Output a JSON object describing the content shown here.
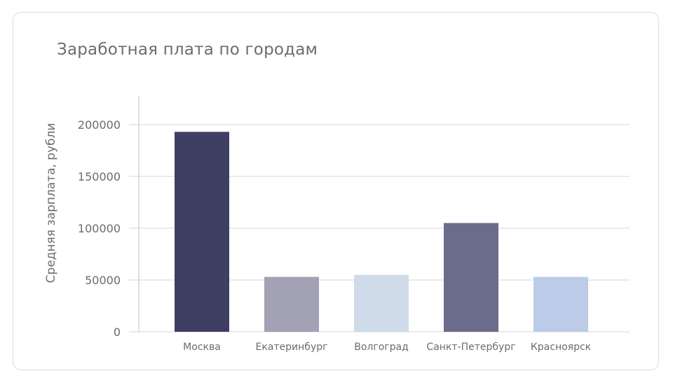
{
  "chart_data": {
    "type": "bar",
    "title": "Заработная плата по городам",
    "xlabel": "",
    "ylabel": "Средняя зарплата, рубли",
    "categories": [
      "Москва",
      "Екатеринбург",
      "Волгоград",
      "Санкт-Петербург",
      "Красноярск"
    ],
    "values": [
      193000,
      53000,
      55000,
      105000,
      53000
    ],
    "colors": [
      "#3f3e63",
      "#a3a2b4",
      "#d0dbea",
      "#6b6c8b",
      "#bccbe8"
    ],
    "yticks": [
      0,
      50000,
      100000,
      150000,
      200000
    ],
    "ylim": [
      0,
      200000
    ],
    "grid": true,
    "legend": "none"
  }
}
